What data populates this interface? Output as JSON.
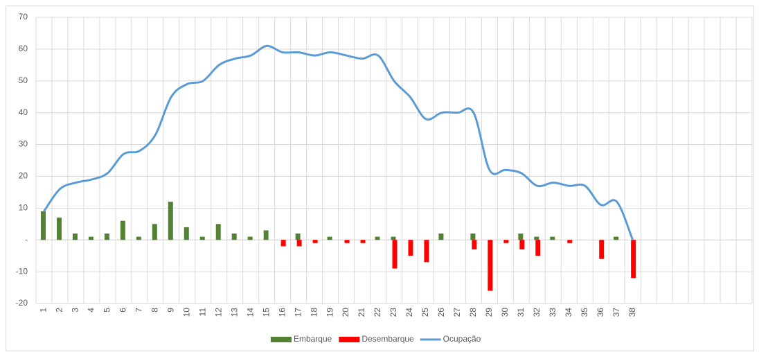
{
  "chart_data": {
    "type": "bar-line",
    "categories": [
      "1",
      "2",
      "3",
      "4",
      "5",
      "6",
      "7",
      "8",
      "9",
      "10",
      "11",
      "12",
      "13",
      "14",
      "15",
      "16",
      "17",
      "18",
      "19",
      "20",
      "21",
      "22",
      "23",
      "24",
      "25",
      "26",
      "27",
      "28",
      "29",
      "30",
      "31",
      "32",
      "33",
      "34",
      "35",
      "36",
      "37",
      "38",
      null,
      null,
      null,
      null,
      null,
      null,
      null
    ],
    "series": [
      {
        "name": "Embarque",
        "type": "bar",
        "color": "#548235",
        "values": [
          9,
          7,
          2,
          1,
          2,
          6,
          1,
          5,
          12,
          4,
          1,
          5,
          2,
          1,
          3,
          0,
          2,
          0,
          1,
          0,
          0,
          1,
          1,
          0,
          0,
          2,
          0,
          2,
          0,
          0,
          2,
          1,
          1,
          0,
          0,
          0,
          1,
          0,
          null,
          null,
          null,
          null,
          null,
          null,
          null
        ]
      },
      {
        "name": "Desembarque",
        "type": "bar",
        "color": "#ff0000",
        "values": [
          0,
          0,
          0,
          0,
          0,
          0,
          0,
          0,
          0,
          0,
          0,
          0,
          0,
          0,
          0,
          -2,
          -2,
          -1,
          0,
          -1,
          -1,
          0,
          -9,
          -5,
          -7,
          0,
          0,
          -3,
          -16,
          -1,
          -3,
          -5,
          0,
          -1,
          0,
          -6,
          0,
          -12,
          null,
          null,
          null,
          null,
          null,
          null,
          null
        ]
      },
      {
        "name": "Ocupação",
        "type": "line",
        "color": "#5b9bd5",
        "values": [
          9,
          16,
          18,
          19,
          21,
          27,
          28,
          33,
          45,
          49,
          50,
          55,
          57,
          58,
          61,
          59,
          59,
          58,
          59,
          58,
          57,
          58,
          50,
          45,
          38,
          40,
          40,
          40,
          22,
          22,
          21,
          17,
          18,
          17,
          17,
          11,
          12,
          0,
          null,
          null,
          null,
          null,
          null,
          null,
          null
        ]
      }
    ],
    "ylim": [
      -20,
      70
    ],
    "yticks": [
      -20,
      -10,
      {
        "value": 0,
        "label": "-"
      },
      10,
      20,
      30,
      40,
      50,
      60,
      70
    ],
    "grid": true,
    "legend": "bottom"
  }
}
